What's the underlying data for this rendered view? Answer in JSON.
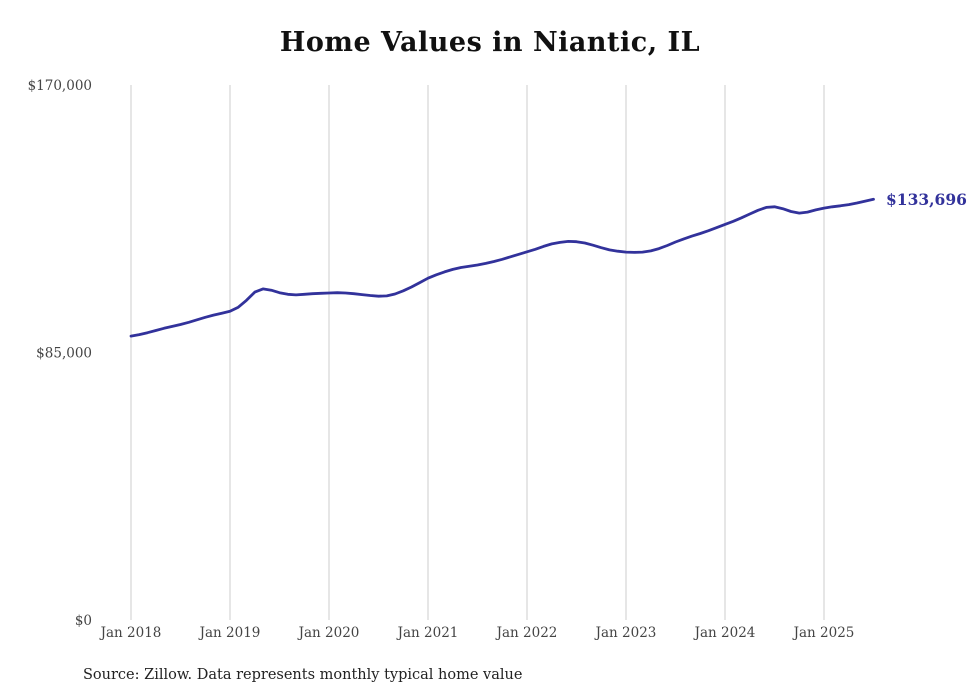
{
  "chart_data": {
    "type": "line",
    "title": "Home Values in Niantic, IL",
    "series_name": "Monthly typical home value",
    "frequency": "monthly",
    "start_month": "2018-01",
    "end_month": "2025-07",
    "values": [
      90200,
      90700,
      91300,
      92000,
      92700,
      93300,
      93900,
      94600,
      95400,
      96200,
      96900,
      97500,
      98100,
      99400,
      101600,
      104200,
      105200,
      104800,
      104000,
      103500,
      103300,
      103500,
      103700,
      103800,
      103900,
      104000,
      103900,
      103700,
      103400,
      103100,
      102900,
      103000,
      103600,
      104600,
      105800,
      107200,
      108600,
      109700,
      110600,
      111400,
      112000,
      112400,
      112800,
      113300,
      113900,
      114600,
      115400,
      116200,
      117000,
      117800,
      118700,
      119500,
      120000,
      120300,
      120200,
      119800,
      119100,
      118300,
      117600,
      117200,
      116900,
      116800,
      116900,
      117300,
      118000,
      119000,
      120100,
      121100,
      122000,
      122800,
      123700,
      124700,
      125700,
      126700,
      127800,
      129000,
      130200,
      131100,
      131300,
      130700,
      129800,
      129300,
      129600,
      130300,
      130900,
      131300,
      131600,
      132000,
      132500,
      133100,
      133696
    ],
    "x_tick_labels": [
      "Jan 2018",
      "Jan 2019",
      "Jan 2020",
      "Jan 2021",
      "Jan 2022",
      "Jan 2023",
      "Jan 2024",
      "Jan 2025"
    ],
    "y_ticks": [
      {
        "value": 0,
        "label": "$0"
      },
      {
        "value": 85000,
        "label": "$85,000"
      },
      {
        "value": 170000,
        "label": "$170,000"
      }
    ],
    "ylim": [
      0,
      170000
    ],
    "end_label": "$133,696",
    "line_color": "#32329b",
    "grid_color": "#cccccc",
    "grid": "vertical-only",
    "legend": "none",
    "source": "Source: Zillow. Data represents monthly typical home value"
  }
}
